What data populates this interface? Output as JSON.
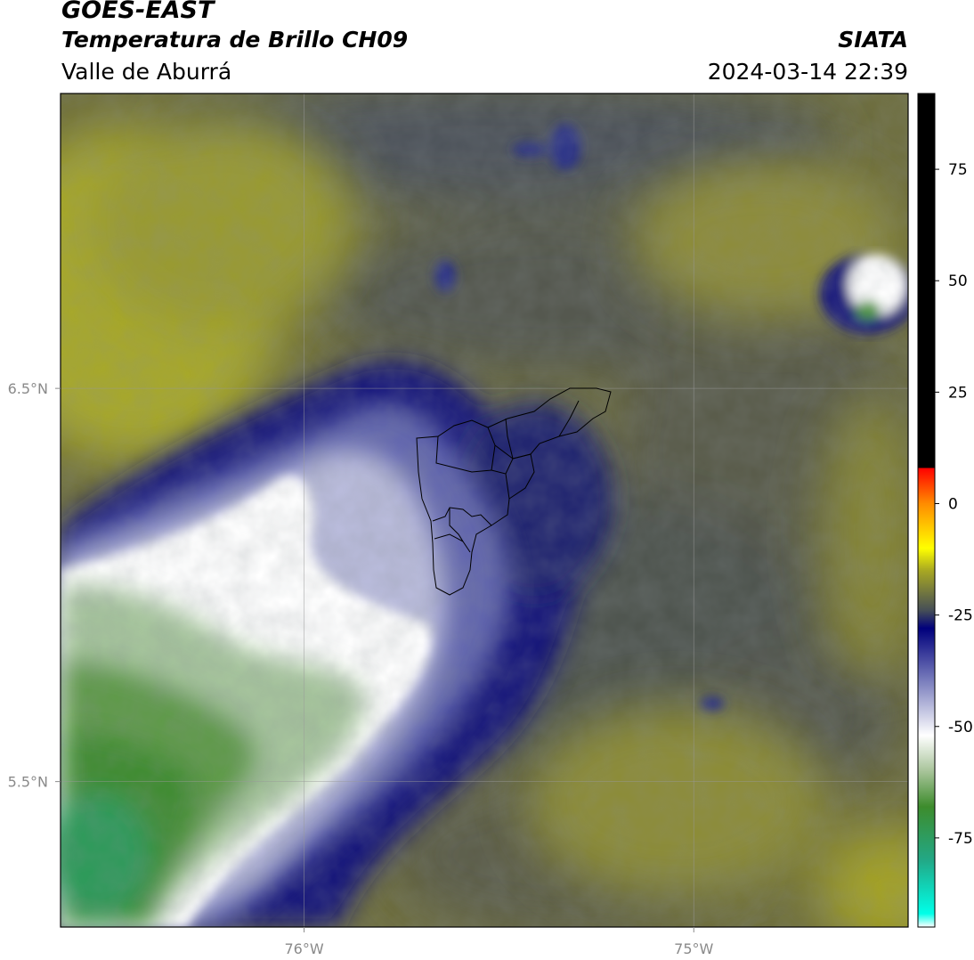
{
  "header": {
    "satellite": "GOES-EAST",
    "product": "Temperatura de Brillo CH09",
    "region": "Valle de Aburrá",
    "organization": "SIATA",
    "datetime": "2024-03-14 22:39"
  },
  "map": {
    "lon_range": [
      -76.625,
      -74.45
    ],
    "lat_range": [
      5.13,
      7.25
    ],
    "lon_ticks": [
      {
        "value": -76.0,
        "label": "76°W"
      },
      {
        "value": -75.0,
        "label": "75°W"
      }
    ],
    "lat_ticks": [
      {
        "value": 6.5,
        "label": "6.5°N"
      },
      {
        "value": 5.5,
        "label": "5.5°N"
      }
    ],
    "gridlines": true
  },
  "colorbar": {
    "range": [
      -95,
      92
    ],
    "ticks": [
      {
        "value": 75,
        "label": "75"
      },
      {
        "value": 50,
        "label": "50"
      },
      {
        "value": 25,
        "label": "25"
      },
      {
        "value": 0,
        "label": "0"
      },
      {
        "value": -25,
        "label": "-25"
      },
      {
        "value": -50,
        "label": "-50"
      },
      {
        "value": -75,
        "label": "-75"
      }
    ],
    "stops": [
      {
        "value": -95,
        "color": "#ffffff"
      },
      {
        "value": -92,
        "color": "#00ffe8"
      },
      {
        "value": -80,
        "color": "#22a886"
      },
      {
        "value": -68,
        "color": "#3d8c2c"
      },
      {
        "value": -60,
        "color": "#a8c49a"
      },
      {
        "value": -52,
        "color": "#ffffff"
      },
      {
        "value": -40,
        "color": "#7c80be"
      },
      {
        "value": -28,
        "color": "#00007c"
      },
      {
        "value": -24,
        "color": "#454e57"
      },
      {
        "value": -15,
        "color": "#a8a822"
      },
      {
        "value": -10,
        "color": "#ffff00"
      },
      {
        "value": 0,
        "color": "#ff8c00"
      },
      {
        "value": 8,
        "color": "#ff0000"
      },
      {
        "value": 8.01,
        "color": "#000000"
      },
      {
        "value": 92,
        "color": "#000000"
      }
    ]
  }
}
